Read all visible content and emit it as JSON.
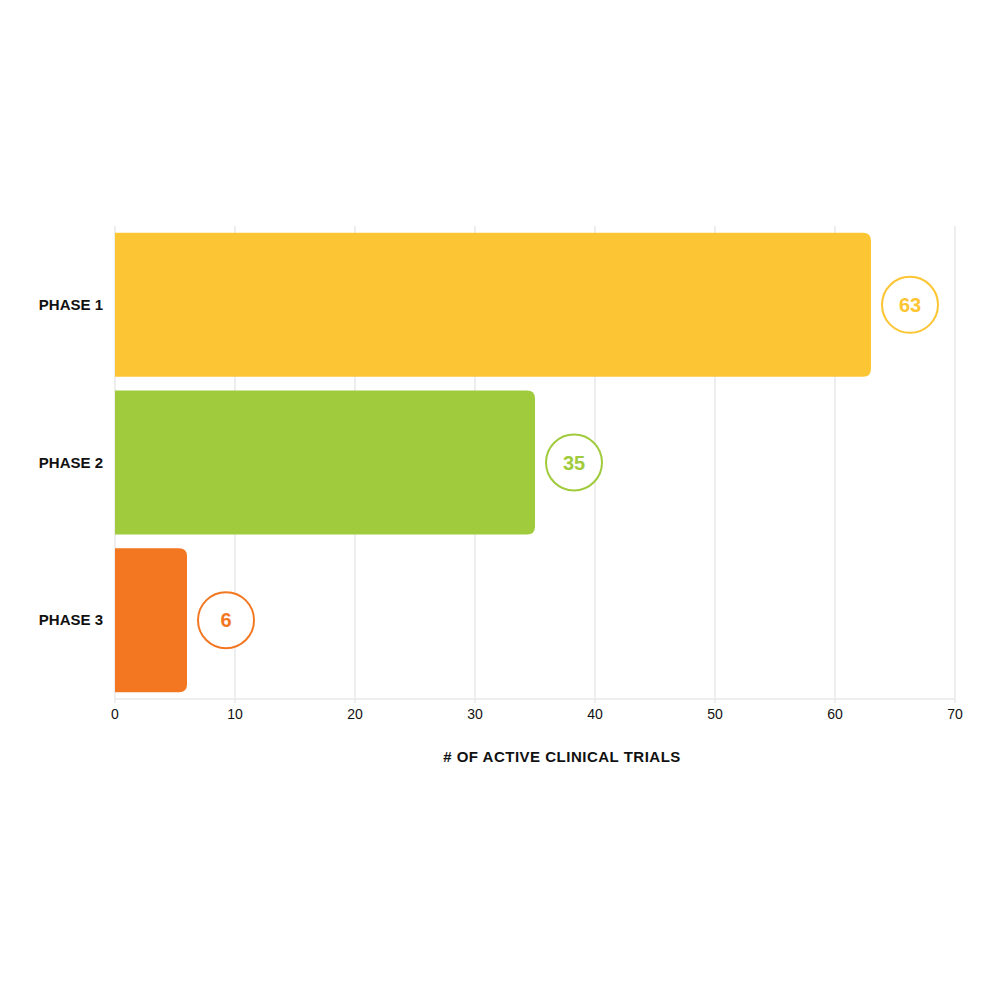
{
  "chart_data": {
    "type": "bar",
    "orientation": "horizontal",
    "categories": [
      "PHASE 1",
      "PHASE 2",
      "PHASE 3"
    ],
    "values": [
      63,
      35,
      6
    ],
    "colors": [
      "#fcc534",
      "#9fcb3c",
      "#f37721"
    ],
    "xlabel": "# OF ACTIVE CLINICAL TRIALS",
    "xlim": [
      0,
      70
    ],
    "xticks": [
      0,
      10,
      20,
      30,
      40,
      50,
      60,
      70
    ],
    "grid": true,
    "data_labels": true
  }
}
